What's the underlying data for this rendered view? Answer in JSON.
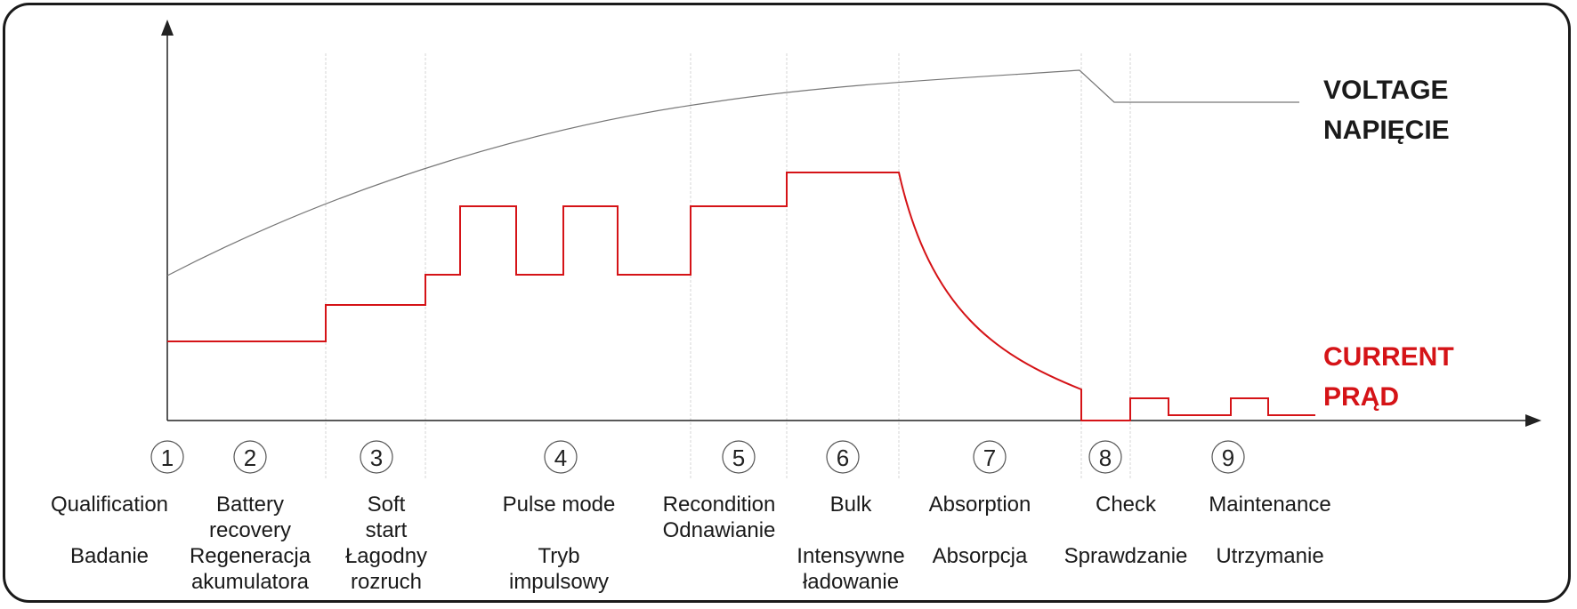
{
  "legend": {
    "voltage": [
      "VOLTAGE",
      "NAPIĘCIE"
    ],
    "current": [
      "CURRENT",
      "PRĄD"
    ]
  },
  "colors": {
    "voltage": "#777777",
    "current": "#d51317",
    "text": "#1a1a1a",
    "frame": "#1a1a1a"
  },
  "stages": [
    {
      "num": "1",
      "name_en": "Qualification",
      "name_pl": "Badanie"
    },
    {
      "num": "2",
      "name_en": "Battery recovery",
      "name_pl": "Regeneracja akumulatora"
    },
    {
      "num": "3",
      "name_en": "Soft start",
      "name_pl": "Łagodny rozruch"
    },
    {
      "num": "4",
      "name_en": "Pulse mode",
      "name_pl": "Tryb impulsowy"
    },
    {
      "num": "5",
      "name_en": "Recondition",
      "name_pl": "Odnawianie"
    },
    {
      "num": "6",
      "name_en": "Bulk",
      "name_pl": "Intensywne ładowanie"
    },
    {
      "num": "7",
      "name_en": "Absorption",
      "name_pl": "Absorpcja"
    },
    {
      "num": "8",
      "name_en": "Check",
      "name_pl": "Sprawdzanie"
    },
    {
      "num": "9",
      "name_en": "Maintenance",
      "name_pl": "Utrzymanie"
    }
  ]
}
